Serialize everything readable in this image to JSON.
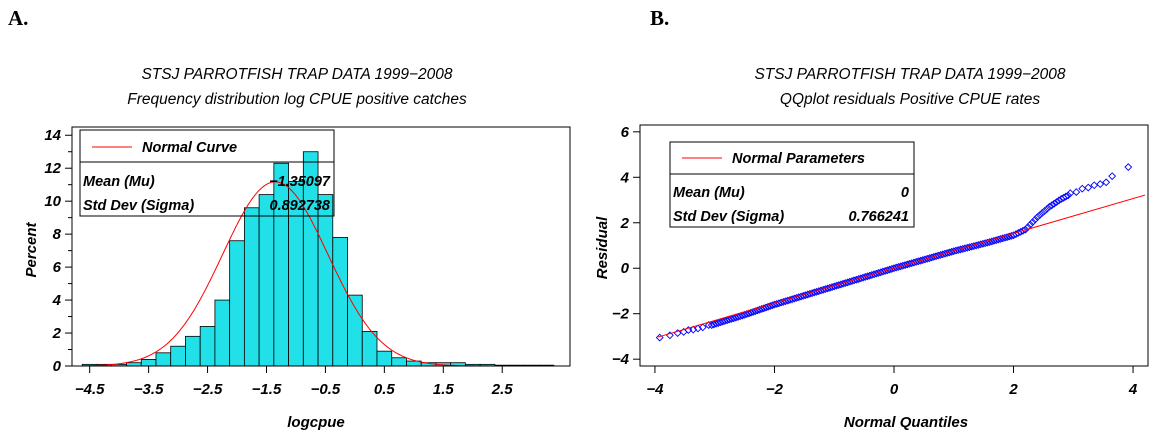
{
  "panel_labels": {
    "a": "A.",
    "b": "B."
  },
  "chart_data": [
    {
      "type": "bar",
      "title": "STSJ PARROTFISH TRAP DATA 1999−2008",
      "subtitle": "Frequency distribution log CPUE positive catches",
      "xlabel": "logcpue",
      "ylabel": "Percent",
      "bin_width": 0.25,
      "bin_starts": [
        -4.625,
        -4.375,
        -4.125,
        -3.875,
        -3.625,
        -3.375,
        -3.125,
        -2.875,
        -2.625,
        -2.375,
        -2.125,
        -1.875,
        -1.625,
        -1.375,
        -1.125,
        -0.875,
        -0.625,
        -0.375,
        -0.125,
        0.125,
        0.375,
        0.625,
        0.875,
        1.125,
        1.375,
        1.625,
        1.875,
        2.125,
        2.375,
        2.625,
        2.875,
        3.125
      ],
      "values": [
        0.1,
        0.1,
        0.1,
        0.2,
        0.4,
        0.8,
        1.2,
        1.8,
        2.4,
        4.0,
        7.6,
        9.6,
        10.4,
        12.3,
        11.2,
        13.0,
        10.4,
        7.8,
        4.3,
        2.1,
        0.9,
        0.5,
        0.3,
        0.2,
        0.2,
        0.2,
        0.1,
        0.1,
        0.05,
        0.05,
        0.05,
        0.05
      ],
      "xticks": [
        -4.5,
        -3.5,
        -2.5,
        -1.5,
        -0.5,
        0.5,
        1.5,
        2.5
      ],
      "xtick_labels": [
        "−4.5",
        "−3.5",
        "−2.5",
        "−1.5",
        "−0.5",
        "0.5",
        "1.5",
        "2.5"
      ],
      "yticks": [
        0,
        2,
        4,
        6,
        8,
        10,
        12,
        14
      ],
      "ytick_labels": [
        "0",
        "2",
        "4",
        "6",
        "8",
        "10",
        "12",
        "14"
      ],
      "xlim": [
        -4.8,
        3.65
      ],
      "ylim": [
        0,
        14.5
      ],
      "bar_color": "#22e0e8",
      "curve": {
        "type": "normal",
        "mean": -1.35097,
        "std": 0.892738,
        "color": "#ff0000"
      },
      "legend": {
        "placement": "top-left",
        "line_label": "Normal Curve",
        "rows": [
          {
            "label": "Mean (Mu)",
            "value": "−1.35097"
          },
          {
            "label": "Std Dev (Sigma)",
            "value": "0.892738"
          }
        ]
      }
    },
    {
      "type": "scatter",
      "title": "STSJ PARROTFISH TRAP DATA 1999−2008",
      "subtitle": "QQplot residuals Positive CPUE rates",
      "xlabel": "Normal Quantiles",
      "ylabel": "Residual",
      "xticks": [
        -4,
        -2,
        0,
        2,
        4
      ],
      "xtick_labels": [
        "−4",
        "−2",
        "0",
        "2",
        "4"
      ],
      "yticks": [
        -4,
        -2,
        0,
        2,
        4,
        6
      ],
      "ytick_labels": [
        "−4",
        "−2",
        "0",
        "2",
        "4",
        "6"
      ],
      "xlim": [
        -4.25,
        4.25
      ],
      "ylim": [
        -4.3,
        6.3
      ],
      "marker_color": "#0000ff",
      "marker": "diamond",
      "reference_line": {
        "intercept": 0,
        "slope": 0.766241,
        "color": "#ff0000"
      },
      "tail_points": [
        {
          "x": -3.92,
          "y": -3.05
        },
        {
          "x": -3.75,
          "y": -2.95
        },
        {
          "x": -3.62,
          "y": -2.85
        },
        {
          "x": -3.52,
          "y": -2.8
        },
        {
          "x": -3.44,
          "y": -2.72
        },
        {
          "x": -3.36,
          "y": -2.7
        },
        {
          "x": -3.28,
          "y": -2.65
        },
        {
          "x": -3.2,
          "y": -2.6
        },
        {
          "x": -3.1,
          "y": -2.5
        },
        {
          "x": 2.95,
          "y": 3.3
        },
        {
          "x": 3.05,
          "y": 3.35
        },
        {
          "x": 3.15,
          "y": 3.5
        },
        {
          "x": 3.25,
          "y": 3.55
        },
        {
          "x": 3.35,
          "y": 3.65
        },
        {
          "x": 3.45,
          "y": 3.7
        },
        {
          "x": 3.55,
          "y": 3.78
        },
        {
          "x": 3.65,
          "y": 4.05
        },
        {
          "x": 3.92,
          "y": 4.45
        }
      ],
      "dense_curve": [
        {
          "x": -3.05,
          "y": -2.5
        },
        {
          "x": -2.5,
          "y": -2.05
        },
        {
          "x": -2.0,
          "y": -1.6
        },
        {
          "x": -1.0,
          "y": -0.8
        },
        {
          "x": 0.0,
          "y": 0.0
        },
        {
          "x": 1.0,
          "y": 0.75
        },
        {
          "x": 1.6,
          "y": 1.15
        },
        {
          "x": 2.0,
          "y": 1.45
        },
        {
          "x": 2.2,
          "y": 1.7
        },
        {
          "x": 2.4,
          "y": 2.25
        },
        {
          "x": 2.6,
          "y": 2.7
        },
        {
          "x": 2.8,
          "y": 3.05
        },
        {
          "x": 2.95,
          "y": 3.25
        }
      ],
      "legend": {
        "placement": "top-left",
        "line_label": "Normal Parameters",
        "rows": [
          {
            "label": "Mean (Mu)",
            "value": "0"
          },
          {
            "label": "Std Dev (Sigma)",
            "value": "0.766241"
          }
        ]
      }
    }
  ]
}
